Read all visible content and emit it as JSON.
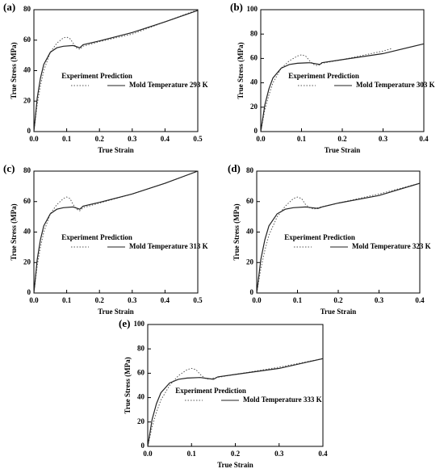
{
  "chart_data": [
    {
      "type": "line",
      "panel": "(a)",
      "x_label": "True Strain",
      "y_label": "True Stress (MPa)",
      "legend_label": "Mold Temperature 293 K",
      "xlim": [
        0,
        0.5
      ],
      "xticks": [
        {
          "value": 0,
          "label": "0.0"
        },
        0.1,
        0.2,
        0.3,
        0.4,
        0.5
      ],
      "ylim": [
        0,
        80
      ],
      "yticks": [
        0,
        20,
        40,
        60,
        80
      ],
      "series": [
        {
          "name": "Experiment",
          "dash": "dotted",
          "color": "#555555",
          "x": [
            0,
            0.01,
            0.02,
            0.03,
            0.05,
            0.07,
            0.09,
            0.1,
            0.11,
            0.12,
            0.13,
            0.14,
            0.15,
            0.2,
            0.3,
            0.4,
            0.5
          ],
          "values": [
            0,
            18,
            30,
            40,
            52,
            58,
            61.5,
            62,
            61,
            58,
            55,
            54,
            56,
            59,
            64,
            72,
            80
          ]
        },
        {
          "name": "Prediction",
          "dash": "solid",
          "color": "#222222",
          "x": [
            0,
            0.01,
            0.02,
            0.03,
            0.05,
            0.07,
            0.09,
            0.12,
            0.14,
            0.15,
            0.2,
            0.3,
            0.4,
            0.5
          ],
          "values": [
            0,
            22,
            35,
            44,
            52,
            55,
            56,
            56.5,
            55,
            57,
            59.5,
            65,
            72,
            79.5
          ]
        }
      ]
    },
    {
      "type": "line",
      "panel": "(b)",
      "x_label": "True Strain",
      "y_label": "True Stress (MPa)",
      "legend_label": "Mold Temperature 303 K",
      "xlim": [
        0,
        0.4
      ],
      "xticks": [
        {
          "value": 0,
          "label": "0.0"
        },
        0.1,
        0.2,
        0.3,
        0.4
      ],
      "ylim": [
        0,
        100
      ],
      "yticks": [
        0,
        20,
        40,
        60,
        80,
        100
      ],
      "series": [
        {
          "name": "Experiment",
          "dash": "dotted",
          "color": "#555555",
          "x": [
            0,
            0.01,
            0.02,
            0.03,
            0.05,
            0.07,
            0.09,
            0.1,
            0.11,
            0.12,
            0.13,
            0.14,
            0.15,
            0.2,
            0.3,
            0.32
          ],
          "values": [
            0,
            18,
            30,
            40,
            52,
            58,
            62,
            63,
            62,
            58,
            55,
            54,
            56,
            59,
            66,
            68
          ]
        },
        {
          "name": "Prediction",
          "dash": "solid",
          "color": "#222222",
          "x": [
            0,
            0.01,
            0.02,
            0.03,
            0.05,
            0.07,
            0.09,
            0.12,
            0.145,
            0.15,
            0.2,
            0.3,
            0.4
          ],
          "values": [
            0,
            22,
            35,
            44,
            52,
            55,
            56,
            56.5,
            55,
            56.5,
            59,
            64,
            72
          ]
        }
      ]
    },
    {
      "type": "line",
      "panel": "(c)",
      "x_label": "True Strain",
      "y_label": "True Stress (MPa)",
      "legend_label": "Mold Temperature 313 K",
      "xlim": [
        0,
        0.5
      ],
      "xticks": [
        {
          "value": 0,
          "label": "0.0"
        },
        0.1,
        0.2,
        0.3,
        0.4,
        0.5
      ],
      "ylim": [
        0,
        80
      ],
      "yticks": [
        0,
        20,
        40,
        60,
        80
      ],
      "series": [
        {
          "name": "Experiment",
          "dash": "dotted",
          "color": "#555555",
          "x": [
            0,
            0.01,
            0.02,
            0.03,
            0.05,
            0.07,
            0.09,
            0.1,
            0.11,
            0.12,
            0.13,
            0.14,
            0.15,
            0.2,
            0.3,
            0.4,
            0.5
          ],
          "values": [
            0,
            18,
            30,
            40,
            52,
            58,
            62,
            63,
            62,
            58,
            55,
            54,
            56,
            59,
            65,
            72,
            80
          ]
        },
        {
          "name": "Prediction",
          "dash": "solid",
          "color": "#222222",
          "x": [
            0,
            0.01,
            0.02,
            0.03,
            0.05,
            0.07,
            0.09,
            0.12,
            0.14,
            0.15,
            0.2,
            0.3,
            0.4,
            0.5
          ],
          "values": [
            0,
            22,
            35,
            44,
            52,
            55,
            56,
            56.5,
            55,
            57,
            59.5,
            65,
            72,
            80
          ]
        }
      ]
    },
    {
      "type": "line",
      "panel": "(d)",
      "x_label": "True Strain",
      "y_label": "True Stress (MPa)",
      "legend_label": "Mold Temperature 323 K",
      "xlim": [
        0,
        0.4
      ],
      "xticks": [
        {
          "value": 0,
          "label": "0.0"
        },
        0.1,
        0.2,
        0.3,
        0.4
      ],
      "ylim": [
        0,
        80
      ],
      "yticks": [
        0,
        20,
        40,
        60,
        80
      ],
      "series": [
        {
          "name": "Experiment",
          "dash": "dotted",
          "color": "#555555",
          "x": [
            0,
            0.01,
            0.02,
            0.03,
            0.05,
            0.07,
            0.09,
            0.1,
            0.11,
            0.12,
            0.13,
            0.14,
            0.15,
            0.2,
            0.3,
            0.4
          ],
          "values": [
            0,
            16,
            28,
            38,
            50,
            57,
            62,
            63,
            62,
            58,
            56,
            55,
            56,
            59,
            65,
            72
          ]
        },
        {
          "name": "Prediction",
          "dash": "solid",
          "color": "#222222",
          "x": [
            0,
            0.01,
            0.02,
            0.03,
            0.05,
            0.07,
            0.09,
            0.12,
            0.15,
            0.16,
            0.2,
            0.3,
            0.4
          ],
          "values": [
            0,
            22,
            35,
            44,
            52,
            55,
            56,
            56.5,
            55.5,
            56.5,
            59,
            64,
            72
          ]
        }
      ]
    },
    {
      "type": "line",
      "panel": "(e)",
      "x_label": "True Strain",
      "y_label": "True Stress (MPa)",
      "legend_label": "Mold Temperature 333 K",
      "xlim": [
        0,
        0.4
      ],
      "xticks": [
        {
          "value": 0,
          "label": "0.0"
        },
        0.1,
        0.2,
        0.3,
        0.4
      ],
      "ylim": [
        0,
        100
      ],
      "yticks": [
        0,
        20,
        40,
        60,
        80,
        100
      ],
      "series": [
        {
          "name": "Experiment",
          "dash": "dotted",
          "color": "#555555",
          "x": [
            0,
            0.01,
            0.02,
            0.03,
            0.05,
            0.07,
            0.09,
            0.1,
            0.11,
            0.12,
            0.13,
            0.14,
            0.15,
            0.2,
            0.3,
            0.4
          ],
          "values": [
            0,
            16,
            28,
            38,
            50,
            58,
            63,
            64,
            63,
            59,
            56,
            55,
            56,
            59,
            65,
            72
          ]
        },
        {
          "name": "Prediction",
          "dash": "solid",
          "color": "#222222",
          "x": [
            0,
            0.01,
            0.02,
            0.03,
            0.05,
            0.07,
            0.09,
            0.12,
            0.15,
            0.16,
            0.2,
            0.3,
            0.4
          ],
          "values": [
            0,
            22,
            35,
            44,
            52,
            55,
            56,
            56.5,
            55,
            57,
            59,
            64,
            72
          ]
        }
      ]
    }
  ]
}
